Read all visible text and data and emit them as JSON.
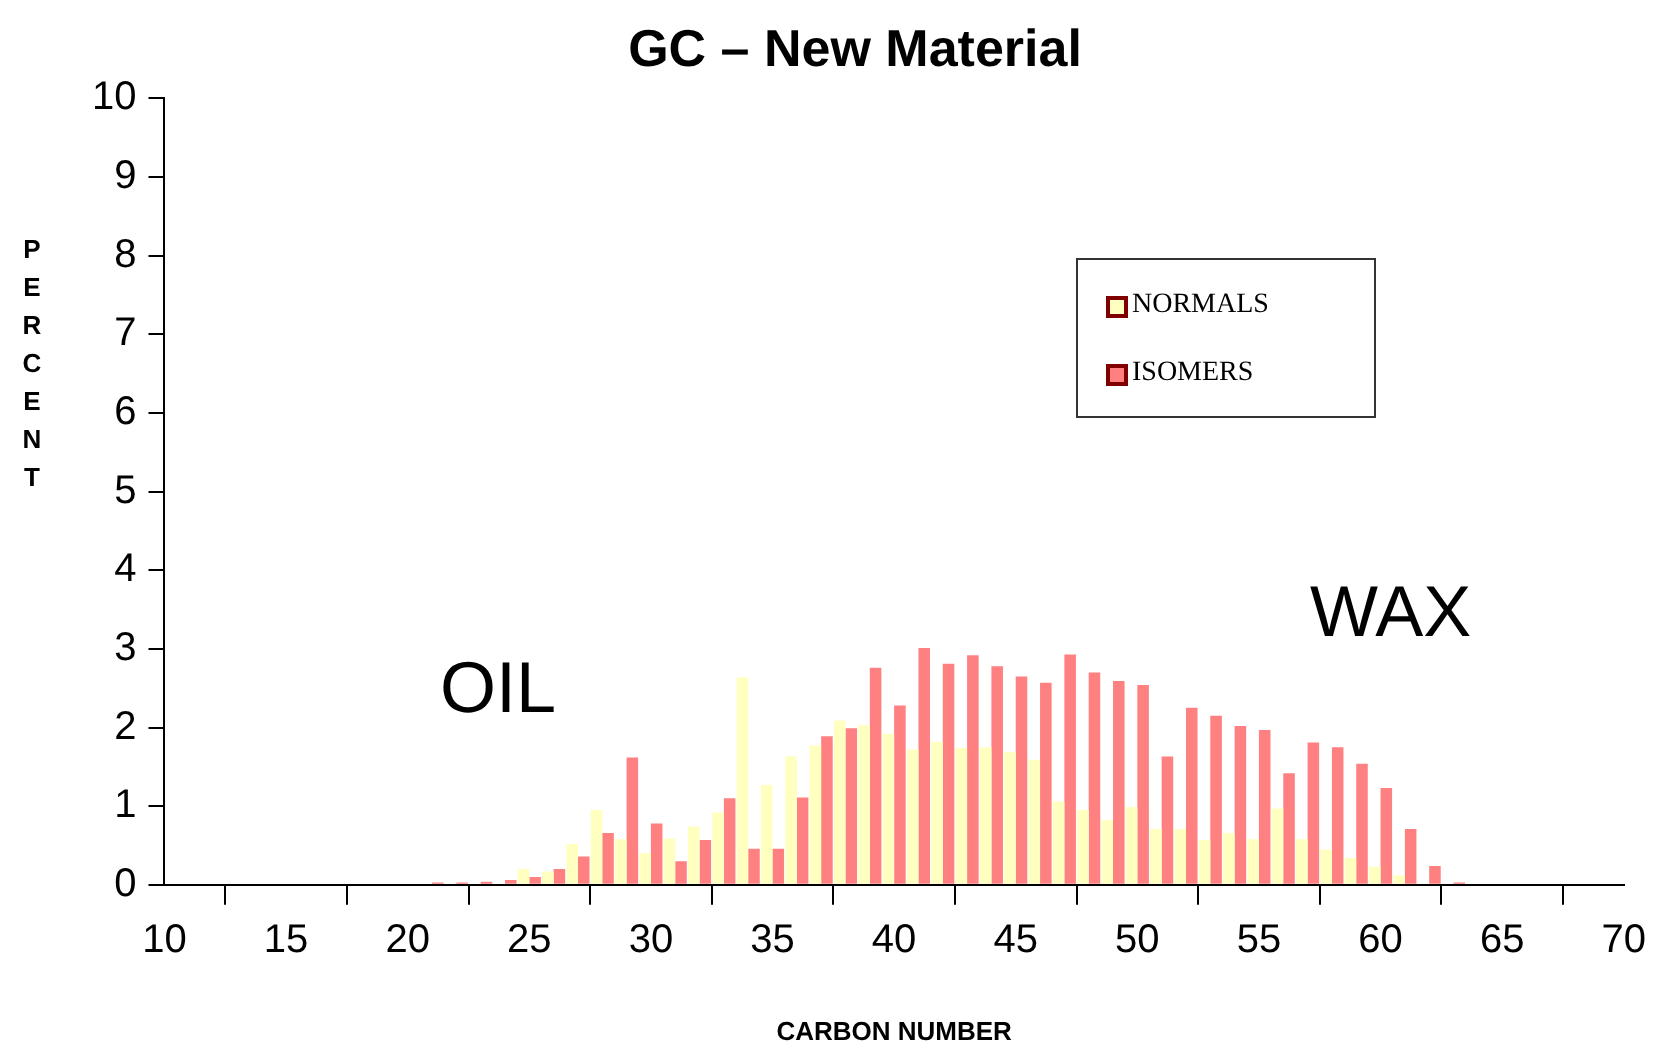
{
  "chart_data": {
    "type": "bar",
    "title": "GC – New Material",
    "xlabel": "CARBON NUMBER",
    "ylabel": "PERCENT",
    "x": [
      21,
      22,
      23,
      24,
      25,
      26,
      27,
      28,
      29,
      30,
      31,
      32,
      33,
      34,
      35,
      36,
      37,
      38,
      39,
      40,
      41,
      42,
      43,
      44,
      45,
      46,
      47,
      48,
      49,
      50,
      51,
      52,
      53,
      54,
      55,
      56,
      57,
      58,
      59,
      60,
      61,
      62,
      63
    ],
    "series": [
      {
        "name": "NORMALS",
        "color": "#ffffc0",
        "values": [
          null,
          null,
          null,
          null,
          0.2,
          0.17,
          0.52,
          0.95,
          0.58,
          0.4,
          0.59,
          0.74,
          0.92,
          2.64,
          1.27,
          1.63,
          1.77,
          2.09,
          2.03,
          1.92,
          1.72,
          1.82,
          1.74,
          1.75,
          1.69,
          1.59,
          1.06,
          0.95,
          0.82,
          0.99,
          0.71,
          0.71,
          0.57,
          0.66,
          0.58,
          0.97,
          0.58,
          0.45,
          0.34,
          0.23,
          0.12,
          null,
          0
        ]
      },
      {
        "name": "ISOMERS",
        "color": "#ff8080",
        "values": [
          0.03,
          0.03,
          0.04,
          0.06,
          0.1,
          0.2,
          0.36,
          0.66,
          1.62,
          0.78,
          0.3,
          0.57,
          1.1,
          0.46,
          0.46,
          1.11,
          1.89,
          1.99,
          2.76,
          2.28,
          3.01,
          2.81,
          2.92,
          2.78,
          2.65,
          2.57,
          2.93,
          2.7,
          2.59,
          2.54,
          1.63,
          2.25,
          2.15,
          2.02,
          1.97,
          1.42,
          1.81,
          1.75,
          1.54,
          1.23,
          0.71,
          0.24,
          0.03
        ]
      }
    ],
    "xlim": [
      10,
      70
    ],
    "xticks": [
      10,
      15,
      20,
      25,
      30,
      35,
      40,
      45,
      50,
      55,
      60,
      65,
      70
    ],
    "ylim": [
      0,
      10
    ],
    "yticks": [
      0,
      1,
      2,
      3,
      4,
      5,
      6,
      7,
      8,
      9,
      10
    ],
    "grid": false,
    "legend": "top right",
    "annotations": [
      "OIL",
      "WAX"
    ]
  }
}
